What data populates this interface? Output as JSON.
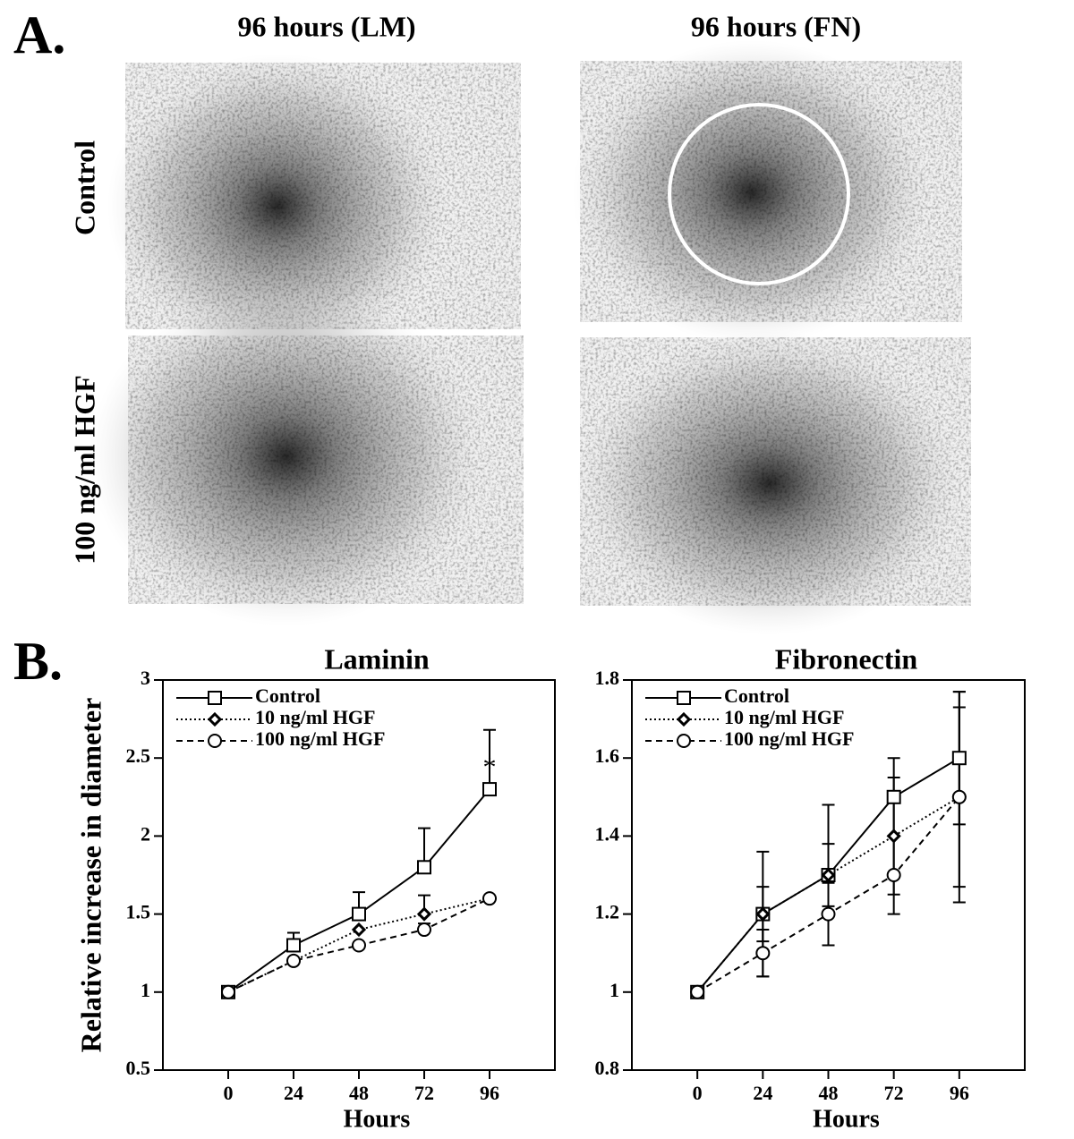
{
  "panel_a": {
    "label": "A.",
    "columns": [
      "96 hours (LM)",
      "96 hours (FN)"
    ],
    "rows": [
      "Control",
      "100 ng/ml HGF"
    ]
  },
  "panel_b": {
    "label": "B.",
    "y_label": "Relative increase in diameter"
  },
  "chart_data": [
    {
      "type": "line",
      "title": "Laminin",
      "x_label": "Hours",
      "x": [
        0,
        24,
        48,
        72,
        96
      ],
      "xlim": [
        -24,
        120
      ],
      "xticks": [
        0,
        24,
        48,
        72,
        96
      ],
      "ylim": [
        0.5,
        3
      ],
      "yticks": [
        0.5,
        1,
        1.5,
        2,
        2.5,
        3
      ],
      "error_direction": "up",
      "legend": "top-left",
      "annotation": "*",
      "series": [
        {
          "name": "Control",
          "color": "#000000",
          "dash": "solid",
          "marker": "square",
          "values": [
            1,
            1.3,
            1.5,
            1.8,
            2.3
          ],
          "errors": [
            0,
            0.08,
            0.14,
            0.25,
            0.38
          ]
        },
        {
          "name": "10 ng/ml HGF",
          "color": "#000000",
          "dash": "dotted",
          "marker": "diamond",
          "values": [
            1,
            1.2,
            1.4,
            1.5,
            1.6
          ],
          "errors": [
            0,
            0,
            0,
            0.12,
            0
          ]
        },
        {
          "name": "100 ng/ml HGF",
          "color": "#000000",
          "dash": "dashed",
          "marker": "circle",
          "values": [
            1,
            1.2,
            1.3,
            1.4,
            1.6
          ],
          "errors": [
            0,
            0,
            0,
            0.04,
            0
          ]
        }
      ]
    },
    {
      "type": "line",
      "title": "Fibronectin",
      "x_label": "Hours",
      "x": [
        0,
        24,
        48,
        72,
        96
      ],
      "xlim": [
        -24,
        120
      ],
      "xticks": [
        0,
        24,
        48,
        72,
        96
      ],
      "ylim": [
        0.8,
        1.8
      ],
      "yticks": [
        0.8,
        1,
        1.2,
        1.4,
        1.6,
        1.8
      ],
      "error_direction": "both",
      "legend": "top-left",
      "series": [
        {
          "name": "Control",
          "color": "#000000",
          "dash": "solid",
          "marker": "square",
          "values": [
            1,
            1.2,
            1.3,
            1.5,
            1.6
          ],
          "errors": [
            0,
            0.16,
            0.18,
            0.1,
            0.17
          ]
        },
        {
          "name": "10 ng/ml HGF",
          "color": "#000000",
          "dash": "dotted",
          "marker": "diamond",
          "values": [
            1,
            1.2,
            1.3,
            1.4,
            1.5
          ],
          "errors": [
            0,
            0.07,
            0.08,
            0.15,
            0.23
          ]
        },
        {
          "name": "100 ng/ml HGF",
          "color": "#000000",
          "dash": "dashed",
          "marker": "circle",
          "values": [
            1,
            1.1,
            1.2,
            1.3,
            1.5
          ],
          "errors": [
            0,
            0.06,
            0.08,
            0.1,
            0.27
          ]
        }
      ]
    }
  ]
}
